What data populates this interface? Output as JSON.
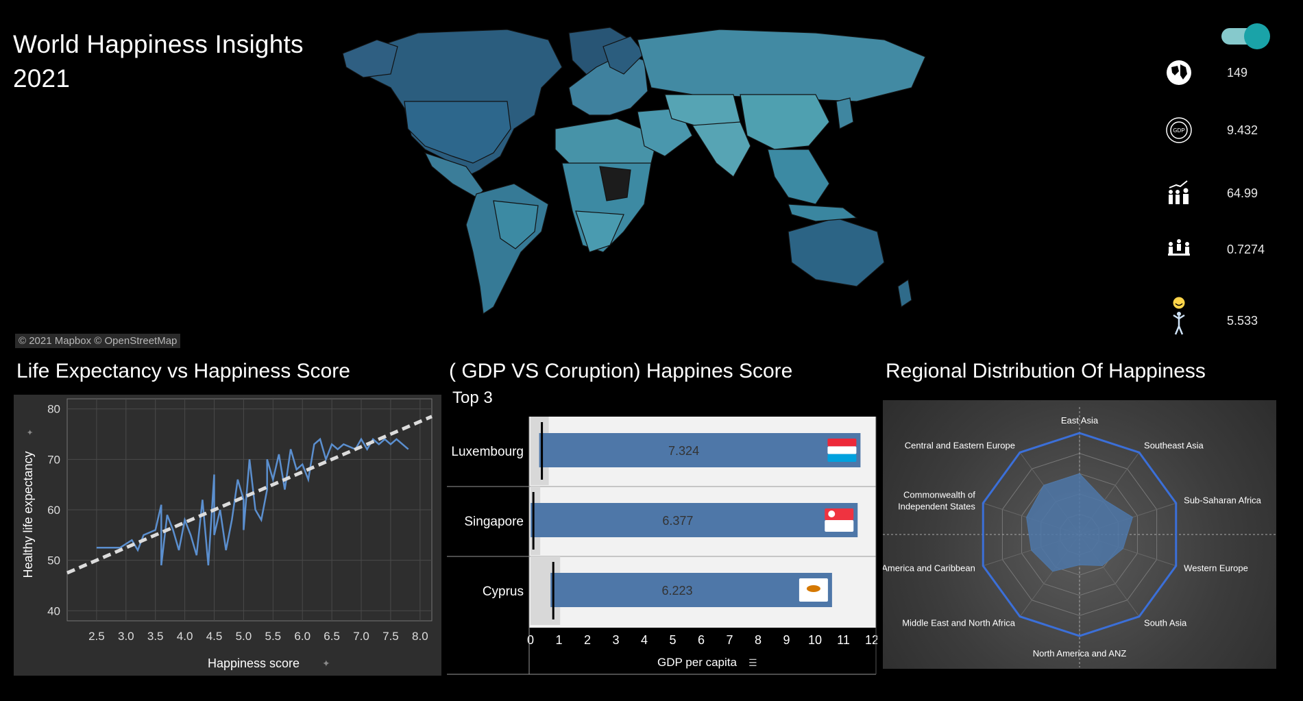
{
  "dashboard": {
    "title_line1": "World Happiness Insights",
    "title_line2": "2021",
    "map_attribution": "© 2021 Mapbox © OpenStreetMap"
  },
  "kpis": [
    {
      "icon": "globe-icon",
      "value": "149"
    },
    {
      "icon": "gdp-icon",
      "value": "9.432"
    },
    {
      "icon": "growth-people-icon",
      "value": "64.99"
    },
    {
      "icon": "meeting-people-icon",
      "value": "0.7274"
    },
    {
      "icon": "happy-person-icon",
      "value": "5.533"
    }
  ],
  "toggle": {
    "state": "on",
    "color": "#1aa3a8"
  },
  "colors": {
    "map_fill": "#2f6b8a",
    "map_light": "#4fa0b0",
    "bar_fill": "#4e77a8",
    "scatter_line": "#5b8fcf",
    "radar_line": "#3b6fd8",
    "radar_fill": "#4e77a8"
  },
  "scatter": {
    "title": "Life Expectancy vs Happiness Score",
    "xlabel": "Happiness score",
    "ylabel": "Healthy life expectancy",
    "x_ticks": [
      "2.5",
      "3.0",
      "3.5",
      "4.0",
      "4.5",
      "5.0",
      "5.5",
      "6.0",
      "6.5",
      "7.0",
      "7.5",
      "8.0"
    ],
    "y_ticks": [
      "40",
      "50",
      "60",
      "70",
      "80"
    ]
  },
  "bars": {
    "title": "( GDP  VS Coruption) Happines Score",
    "subtitle": "Top 3",
    "xlabel": "GDP per capita",
    "x_ticks": [
      "0",
      "1",
      "2",
      "3",
      "4",
      "5",
      "6",
      "7",
      "8",
      "9",
      "10",
      "11",
      "12"
    ]
  },
  "radar": {
    "title": "Regional Distribution Of Happiness"
  },
  "chart_data": [
    {
      "type": "scatter",
      "title": "Life Expectancy vs Happiness Score",
      "xlabel": "Happiness score",
      "ylabel": "Healthy life expectancy",
      "xlim": [
        2.0,
        8.2
      ],
      "ylim": [
        38,
        82
      ],
      "x": [
        2.5,
        2.9,
        3.1,
        3.2,
        3.3,
        3.5,
        3.6,
        3.6,
        3.7,
        3.8,
        3.9,
        4.0,
        4.1,
        4.2,
        4.3,
        4.4,
        4.5,
        4.5,
        4.6,
        4.7,
        4.8,
        4.9,
        5.0,
        5.0,
        5.1,
        5.2,
        5.3,
        5.4,
        5.4,
        5.5,
        5.6,
        5.7,
        5.8,
        5.9,
        6.0,
        6.1,
        6.2,
        6.3,
        6.4,
        6.5,
        6.6,
        6.7,
        6.9,
        7.0,
        7.1,
        7.2,
        7.3,
        7.4,
        7.5,
        7.6,
        7.8
      ],
      "y": [
        52.5,
        52.5,
        54,
        52,
        55,
        56,
        61,
        49,
        59,
        56,
        52,
        58,
        55,
        51,
        62,
        49,
        67,
        55,
        60,
        52,
        58,
        66,
        62,
        56,
        70,
        60,
        58,
        64,
        70,
        66,
        71,
        64,
        72,
        68,
        69,
        66,
        73,
        74,
        70,
        73,
        72,
        73,
        72,
        74,
        72,
        74,
        73,
        74,
        73,
        74,
        72
      ],
      "trend": {
        "x": [
          2.0,
          8.2
        ],
        "y": [
          47.5,
          78.5
        ]
      }
    },
    {
      "type": "bar",
      "title": "( GDP  VS Coruption) Happines Score",
      "xlabel": "GDP per capita",
      "xlim": [
        0,
        12
      ],
      "categories": [
        "Luxembourg",
        "Singapore",
        "Cyprus"
      ],
      "series": [
        {
          "name": "GDP per capita",
          "values": [
            11.6,
            11.5,
            10.6
          ]
        },
        {
          "values": [
            0.4,
            0.1,
            0.8
          ]
        }
      ],
      "data_labels": [
        "7.324",
        "6.377",
        "6.223"
      ],
      "flags": [
        {
          "stripes": [
            "#ed2939",
            "#ffffff",
            "#00a1de"
          ]
        },
        {
          "stripes": [
            "#ef3340",
            "#ffffff"
          ]
        },
        {
          "stripes": [
            "#ffffff"
          ],
          "emblem": "#d57800"
        }
      ]
    },
    {
      "type": "radar",
      "title": "Regional Distribution Of Happiness",
      "categories": [
        "East Asia",
        "Southeast Asia",
        "Sub-Saharan Africa",
        "Western Europe",
        "South Asia",
        "North America and ANZ",
        "Middle East and North Africa",
        "America and Caribbean",
        "Commonwealth of Independent States",
        "Central and Eastern Europe"
      ],
      "values": [
        0.6,
        0.42,
        0.55,
        0.45,
        0.38,
        0.3,
        0.45,
        0.5,
        0.55,
        0.6
      ],
      "max": 1
    }
  ]
}
